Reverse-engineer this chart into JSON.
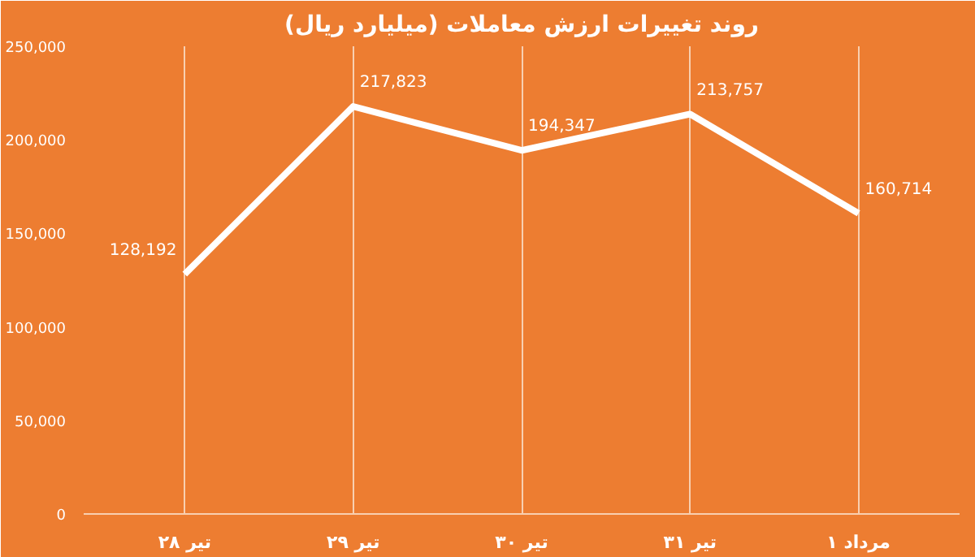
{
  "chart_data": {
    "type": "line",
    "title": "روند تغییرات ارزش معاملات (میلیارد ریال)",
    "categories": [
      "۲۸ تیر",
      "۲۹ تیر",
      "۳۰ تیر",
      "۳۱ تیر",
      "۱ مرداد"
    ],
    "series": [
      {
        "color": "#ffffff",
        "values": [
          128192,
          217823,
          194347,
          213757,
          160714
        ],
        "value_labels": [
          "128,192",
          "217,823",
          "194,347",
          "213,757",
          "160,714"
        ]
      }
    ],
    "ylim": [
      0,
      250000
    ],
    "yticks": [
      {
        "value": 0,
        "label": "0"
      },
      {
        "value": 50000,
        "label": "50,000"
      },
      {
        "value": 100000,
        "label": "100,000"
      },
      {
        "value": 150000,
        "label": "150,000"
      },
      {
        "value": 200000,
        "label": "200,000"
      },
      {
        "value": 250000,
        "label": "250,000"
      }
    ],
    "grid": "x",
    "marker": "none",
    "line_style": "solid"
  }
}
